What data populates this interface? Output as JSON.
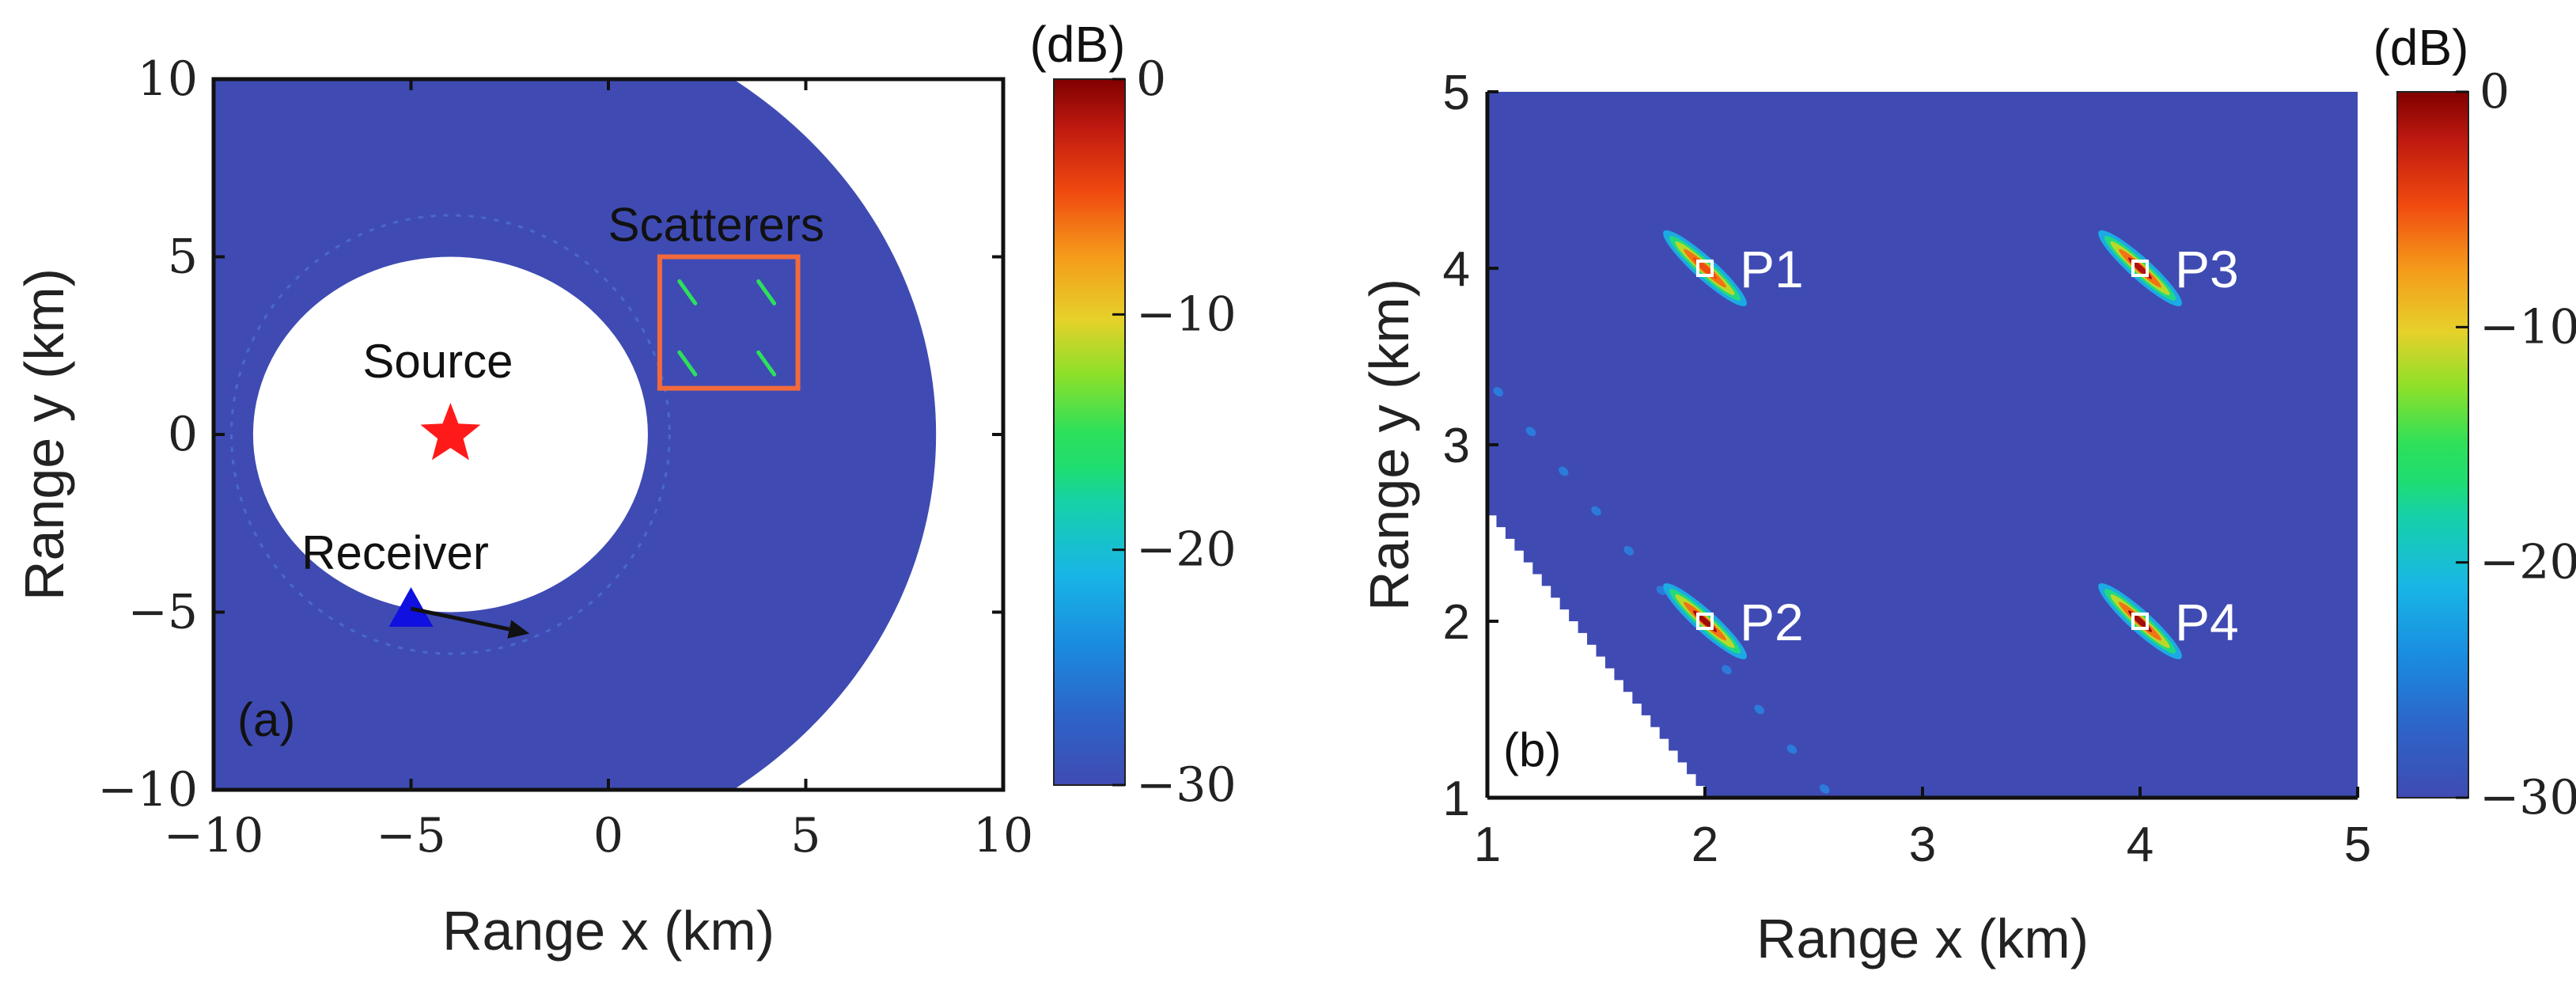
{
  "colors": {
    "background_field": "#3f4bb3",
    "white_region": "#ffffff",
    "source_marker": "#ff1a1a",
    "receiver_marker": "#1010e0",
    "scatterer_box": "#f26a3c",
    "axis": "#111111",
    "point_marker": "#ffffff",
    "point_label": "#ffffff",
    "colormap": [
      "#3f4bb3",
      "#2b7bdb",
      "#18b6e6",
      "#16d1a8",
      "#2de05a",
      "#8be02a",
      "#e6d12a",
      "#f59a1a",
      "#f04a10",
      "#b01010",
      "#800000"
    ]
  },
  "chart_data": [
    {
      "id": "a",
      "type": "heatmap",
      "panel_label": "(a)",
      "xlabel": "Range x (km)",
      "ylabel": "Range y (km)",
      "xlim": [
        -10,
        10
      ],
      "ylim": [
        -10,
        10
      ],
      "xticks": [
        -10,
        -5,
        0,
        5,
        10
      ],
      "yticks": [
        -10,
        -5,
        0,
        5,
        10
      ],
      "xtick_labels": [
        "−10",
        "−5",
        "0",
        "5",
        "10"
      ],
      "ytick_labels": [
        "−10",
        "−5",
        "0",
        "5",
        "10"
      ],
      "colorbar": {
        "unit_label": "(dB)",
        "range": [
          -30,
          0
        ],
        "ticks": [
          0,
          -10,
          -20,
          -30
        ],
        "tick_labels": [
          "0",
          "−10",
          "−20",
          "−30"
        ]
      },
      "coverage_annulus": {
        "center": [
          -4,
          0
        ],
        "inner_radius": 5.0,
        "outer_radius": 12.3
      },
      "source": {
        "label": "Source",
        "x": -4,
        "y": 0
      },
      "receiver": {
        "label": "Receiver",
        "x": -5,
        "y": -4.9,
        "heading_to": [
          -2,
          -5.6
        ]
      },
      "scatterer_region": {
        "label": "Scatterers",
        "x_range": [
          1.3,
          4.8
        ],
        "y_range": [
          1.3,
          5.0
        ]
      },
      "scatterers": [
        {
          "x": 2,
          "y": 4
        },
        {
          "x": 4,
          "y": 4
        },
        {
          "x": 2,
          "y": 2
        },
        {
          "x": 4,
          "y": 2
        }
      ]
    },
    {
      "id": "b",
      "type": "heatmap",
      "panel_label": "(b)",
      "xlabel": "Range x (km)",
      "ylabel": "Range y (km)",
      "xlim": [
        1,
        5
      ],
      "ylim": [
        1,
        5
      ],
      "xticks": [
        1,
        2,
        3,
        4,
        5
      ],
      "yticks": [
        1,
        2,
        3,
        4,
        5
      ],
      "xtick_labels": [
        "1",
        "2",
        "3",
        "4",
        "5"
      ],
      "ytick_labels": [
        "1",
        "2",
        "3",
        "4",
        "5"
      ],
      "colorbar": {
        "unit_label": "(dB)",
        "range": [
          -30,
          0
        ],
        "ticks": [
          0,
          -10,
          -20,
          -30
        ],
        "tick_labels": [
          "0",
          "−10",
          "−20",
          "−30"
        ]
      },
      "points": [
        {
          "label": "P1",
          "x": 2,
          "y": 4,
          "peak_db": -6
        },
        {
          "label": "P2",
          "x": 2,
          "y": 2,
          "peak_db": -2
        },
        {
          "label": "P3",
          "x": 4,
          "y": 4,
          "peak_db": -3
        },
        {
          "label": "P4",
          "x": 4,
          "y": 2,
          "peak_db": -2
        }
      ]
    }
  ]
}
